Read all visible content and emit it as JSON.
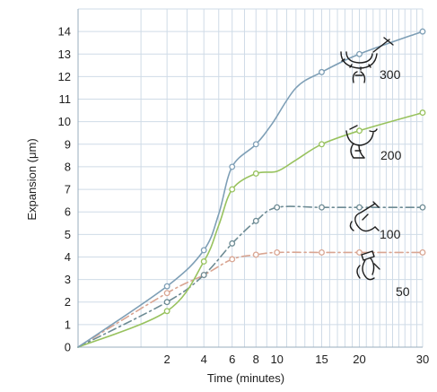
{
  "chart_data": {
    "type": "line",
    "title": "",
    "xlabel": "Time (minutes)",
    "ylabel": "Expansion (μm)",
    "xlim": [
      0,
      30
    ],
    "ylim": [
      0,
      15
    ],
    "x_scale": "sqrt",
    "x_ticks": [
      2,
      4,
      6,
      8,
      10,
      15,
      20,
      30
    ],
    "x_gridlines": [
      1,
      2,
      3,
      4,
      5,
      6,
      7,
      8,
      9,
      10,
      11,
      12,
      13,
      14,
      15,
      16,
      17,
      18,
      19,
      20,
      21,
      22,
      23,
      24,
      25,
      26,
      27,
      28,
      29,
      30
    ],
    "y_ticks": [
      0,
      1,
      2,
      3,
      4,
      5,
      6,
      7,
      8,
      9,
      10,
      11,
      12,
      13,
      14
    ],
    "grid": true,
    "series": [
      {
        "label": "300",
        "color": "#7e9fb6",
        "line_style": "solid",
        "icon": "micrometer-icon",
        "marker_x": [
          2,
          4,
          6,
          8,
          15,
          20,
          30
        ],
        "marker_y": [
          2.7,
          4.3,
          8.0,
          9.0,
          12.2,
          13.0,
          14.0
        ],
        "curve_x": [
          0,
          2,
          4,
          5,
          6,
          8,
          9.5,
          12,
          15,
          20,
          30
        ],
        "curve_y": [
          0,
          2.7,
          4.3,
          5.9,
          8.0,
          9.0,
          9.9,
          11.5,
          12.2,
          13.0,
          14.0
        ]
      },
      {
        "label": "200",
        "color": "#98c25e",
        "line_style": "solid",
        "icon": "hand-gauge-icon",
        "marker_x": [
          2,
          4,
          6,
          8,
          15,
          20,
          30
        ],
        "marker_y": [
          1.6,
          3.8,
          7.0,
          7.7,
          9.0,
          9.6,
          10.4
        ],
        "curve_x": [
          0,
          2,
          4,
          5,
          6,
          8,
          10,
          12,
          15,
          20,
          30
        ],
        "curve_y": [
          0,
          1.6,
          3.8,
          5.4,
          7.0,
          7.7,
          7.8,
          8.3,
          9.0,
          9.6,
          10.4
        ]
      },
      {
        "label": "100",
        "color": "#6d8b94",
        "line_style": "dash-dot",
        "icon": "caliper-icon",
        "marker_x": [
          2,
          4,
          6,
          8,
          10,
          15,
          20,
          30
        ],
        "marker_y": [
          2.0,
          3.2,
          4.6,
          5.6,
          6.2,
          6.2,
          6.2,
          6.2
        ],
        "curve_x": [
          0,
          2,
          4,
          6,
          8,
          10,
          15,
          20,
          30
        ],
        "curve_y": [
          0,
          2.0,
          3.2,
          4.6,
          5.6,
          6.2,
          6.2,
          6.2,
          6.2
        ]
      },
      {
        "label": "50",
        "color": "#d9a592",
        "line_style": "dash-dot",
        "icon": "hand-caliper-icon",
        "marker_x": [
          2,
          4,
          6,
          8,
          10,
          15,
          20,
          30
        ],
        "marker_y": [
          2.4,
          3.2,
          3.9,
          4.1,
          4.2,
          4.2,
          4.2,
          4.2
        ],
        "curve_x": [
          0,
          2,
          4,
          6,
          8,
          10,
          15,
          20,
          30
        ],
        "curve_y": [
          0,
          2.4,
          3.2,
          3.9,
          4.1,
          4.2,
          4.2,
          4.2,
          4.2
        ]
      }
    ]
  }
}
